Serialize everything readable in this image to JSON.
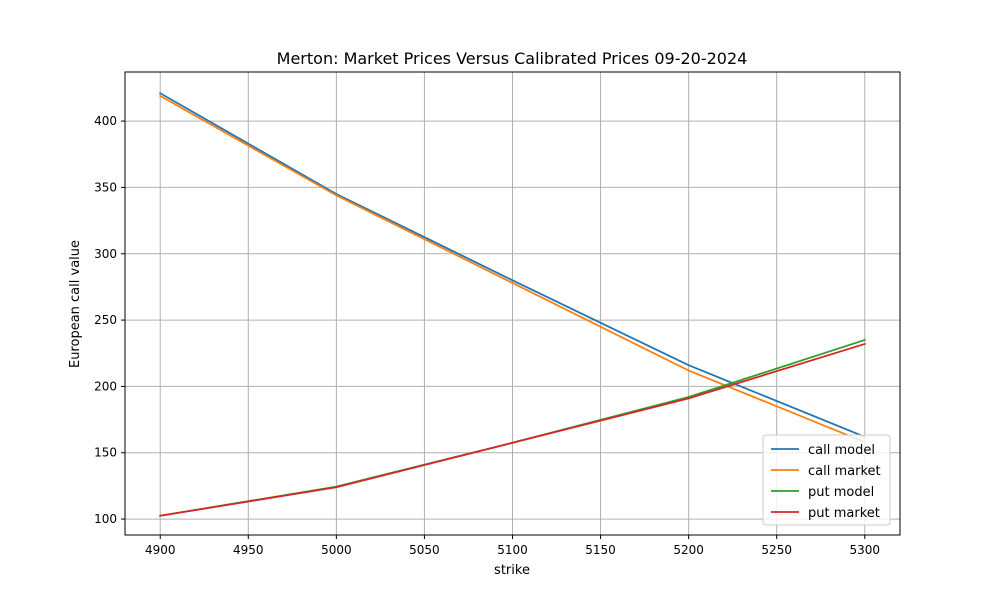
{
  "chart_data": {
    "type": "line",
    "title": "Merton: Market Prices Versus Calibrated Prices 09-20-2024",
    "xlabel": "strike",
    "ylabel": "European call value",
    "x": [
      4900,
      5000,
      5100,
      5200,
      5300
    ],
    "xlim": [
      4880,
      5320
    ],
    "ylim": [
      88,
      437
    ],
    "xticks": [
      4900,
      4950,
      5000,
      5050,
      5100,
      5150,
      5200,
      5250,
      5300
    ],
    "yticks": [
      100,
      150,
      200,
      250,
      300,
      350,
      400
    ],
    "grid": true,
    "legend_position": "lower right",
    "series": [
      {
        "name": "call model",
        "color": "#1f77b4",
        "values": [
          421,
          345,
          280,
          216,
          162
        ]
      },
      {
        "name": "call market",
        "color": "#ff7f0e",
        "values": [
          419,
          344,
          278,
          212,
          158
        ]
      },
      {
        "name": "put model",
        "color": "#2ca02c",
        "values": [
          102.5,
          124.5,
          157.5,
          192,
          235
        ]
      },
      {
        "name": "put market",
        "color": "#d62728",
        "values": [
          102.5,
          124,
          157.5,
          191,
          232
        ]
      }
    ]
  }
}
